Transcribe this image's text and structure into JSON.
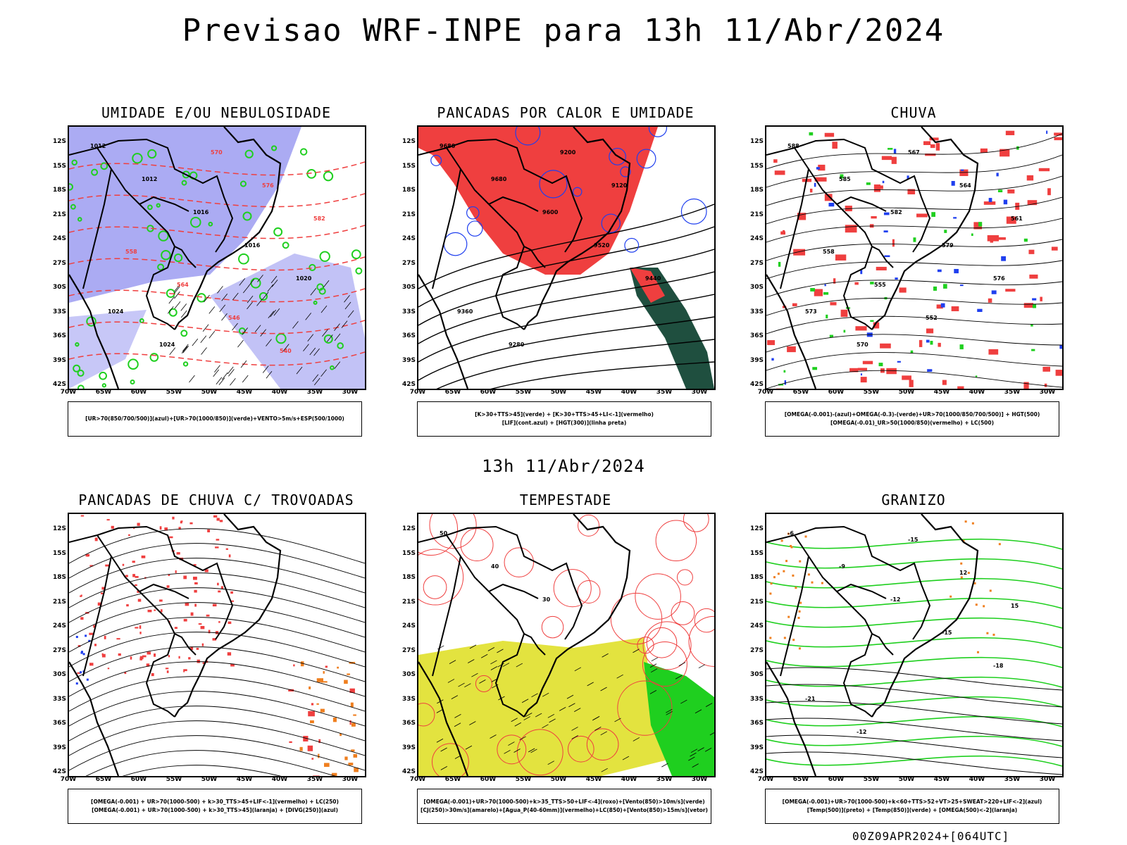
{
  "title": "Previsao WRF-INPE  para 13h 11/Abr/2024",
  "mid_title": "13h 11/Abr/2024",
  "footer": "00Z09APR2024+[064UTC]",
  "lat_ticks": [
    "12S",
    "15S",
    "18S",
    "21S",
    "24S",
    "27S",
    "30S",
    "33S",
    "36S",
    "39S",
    "42S"
  ],
  "lon_ticks": [
    "70W",
    "65W",
    "60W",
    "55W",
    "50W",
    "45W",
    "40W",
    "35W",
    "30W"
  ],
  "colors": {
    "blue": "#8f8fef",
    "green": "#1fcf1f",
    "red": "#ef3f3f",
    "darkgreen": "#1f4f3f",
    "yellow": "#e3e33f",
    "orange": "#ef7f1f",
    "dblue": "#1f3fef"
  },
  "panels": [
    {
      "title": "UMIDADE E/OU NEBULOSIDADE",
      "legend1": "[UR>70(850/700/500)](azul)+[UR>70(1000/850)](verde)+VENTO>5m/s+ESP(500/1000)",
      "legend2": "",
      "labels": [
        "1012",
        "1012",
        "1016",
        "1016",
        "1020",
        "1024",
        "1024",
        "570",
        "576",
        "582",
        "558",
        "564",
        "546",
        "540"
      ]
    },
    {
      "title": "PANCADAS POR CALOR E UMIDADE",
      "legend1": "[K>30+TTS>45](verde) + [K>30+TTS>45+LI<-1](vermelho)",
      "legend2": "[LIF](cont.azul) + [HGT(300)](linha preta)",
      "labels": [
        "9680",
        "9680",
        "9600",
        "9520",
        "9440",
        "9360",
        "9280",
        "9200",
        "9120"
      ]
    },
    {
      "title": "CHUVA",
      "legend1": "[OMEGA(-0.001)-(azul)+OMEGA(-0.3)-(verde)+UR>70(1000/850/700/500)] + HGT(500)",
      "legend2": "[OMEGA(-0.01)_UR>50(1000/850)(vermelho) + LC(500)",
      "labels": [
        "588",
        "585",
        "582",
        "579",
        "576",
        "573",
        "570",
        "567",
        "564",
        "561",
        "558",
        "555",
        "552"
      ]
    },
    {
      "title": "PANCADAS DE CHUVA C/ TROVOADAS",
      "legend1": "[OMEGA(-0.001) + UR>70(1000-500) + k>30_TTS>45+LIF<-1](vermelho) + LC(250)",
      "legend2": "[OMEGA(-0.001) + UR>70(1000-500) + k>30_TTS>45](laranja) + [DIVG(250)](azul)",
      "labels": []
    },
    {
      "title": "TEMPESTADE",
      "legend1": "[OMEGA(-0.001)+UR>70(1000-500)+k>35_TTS>50+LIF<-4](roxo)+[Vento(850)>10m/s](verde)",
      "legend2": "[CJ(250)>30m/s](amarelo)+[Agua_P(40-60mm)](vermelho)+LC(850)+[Vento(850)>15m/s](vetor)",
      "labels": [
        "50",
        "40",
        "30"
      ]
    },
    {
      "title": "GRANIZO",
      "legend1": "[OMEGA(-0.001)+UR>70(1000-500)+k<60+TTS>52+VT>25+SWEAT>220+LIF<-2](azul)",
      "legend2": "[Temp(500)](preto) + [Temp(850)](verde) + [OMEGA(500)<-2](laranja)",
      "labels": [
        "-6",
        "-9",
        "-12",
        "-15",
        "-18",
        "-21",
        "-12",
        "-15",
        "12",
        "15"
      ]
    }
  ]
}
